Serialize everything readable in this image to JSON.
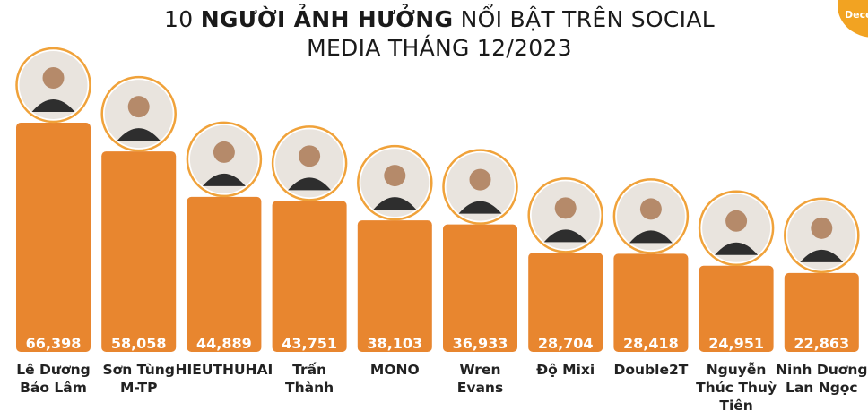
{
  "title": {
    "part1": "10 ",
    "bold": "NGƯỜI ẢNH HƯỞNG",
    "part2": " NỔI BẬT TRÊN SOCIAL",
    "line2": "MEDIA THÁNG 12/2023"
  },
  "badge": {
    "text": "Dece"
  },
  "colors": {
    "bar": "#e8862f",
    "avatar_ring": "#f0a23a",
    "avatar_fill": "#e9e4de"
  },
  "chart_data": {
    "type": "bar",
    "title": "10 NGƯỜI ẢNH HƯỞNG NỔI BẬT TRÊN SOCIAL MEDIA THÁNG 12/2023",
    "xlabel": "",
    "ylabel": "",
    "grid": false,
    "legend": "none",
    "ylim": [
      0,
      70000
    ],
    "categories": [
      [
        "Lê Dương",
        "Bảo Lâm"
      ],
      [
        "Sơn Tùng",
        "M-TP"
      ],
      [
        "HIEUTHUHAI"
      ],
      [
        "Trấn",
        "Thành"
      ],
      [
        "MONO"
      ],
      [
        "Wren",
        "Evans"
      ],
      [
        "Độ Mixi"
      ],
      [
        "Double2T"
      ],
      [
        "Nguyễn",
        "Thúc Thuỳ",
        "Tiên"
      ],
      [
        "Ninh Dương",
        "Lan Ngọc"
      ]
    ],
    "values": [
      66398,
      58058,
      44889,
      43751,
      38103,
      36933,
      28704,
      28418,
      24951,
      22863
    ],
    "value_labels": [
      "66,398",
      "58,058",
      "44,889",
      "43,751",
      "38,103",
      "36,933",
      "28,704",
      "28,418",
      "24,951",
      "22,863"
    ],
    "avatars": [
      "person-photo",
      "person-photo",
      "person-photo",
      "person-photo",
      "person-photo",
      "person-photo",
      "person-photo",
      "person-photo",
      "person-photo",
      "person-photo"
    ]
  }
}
